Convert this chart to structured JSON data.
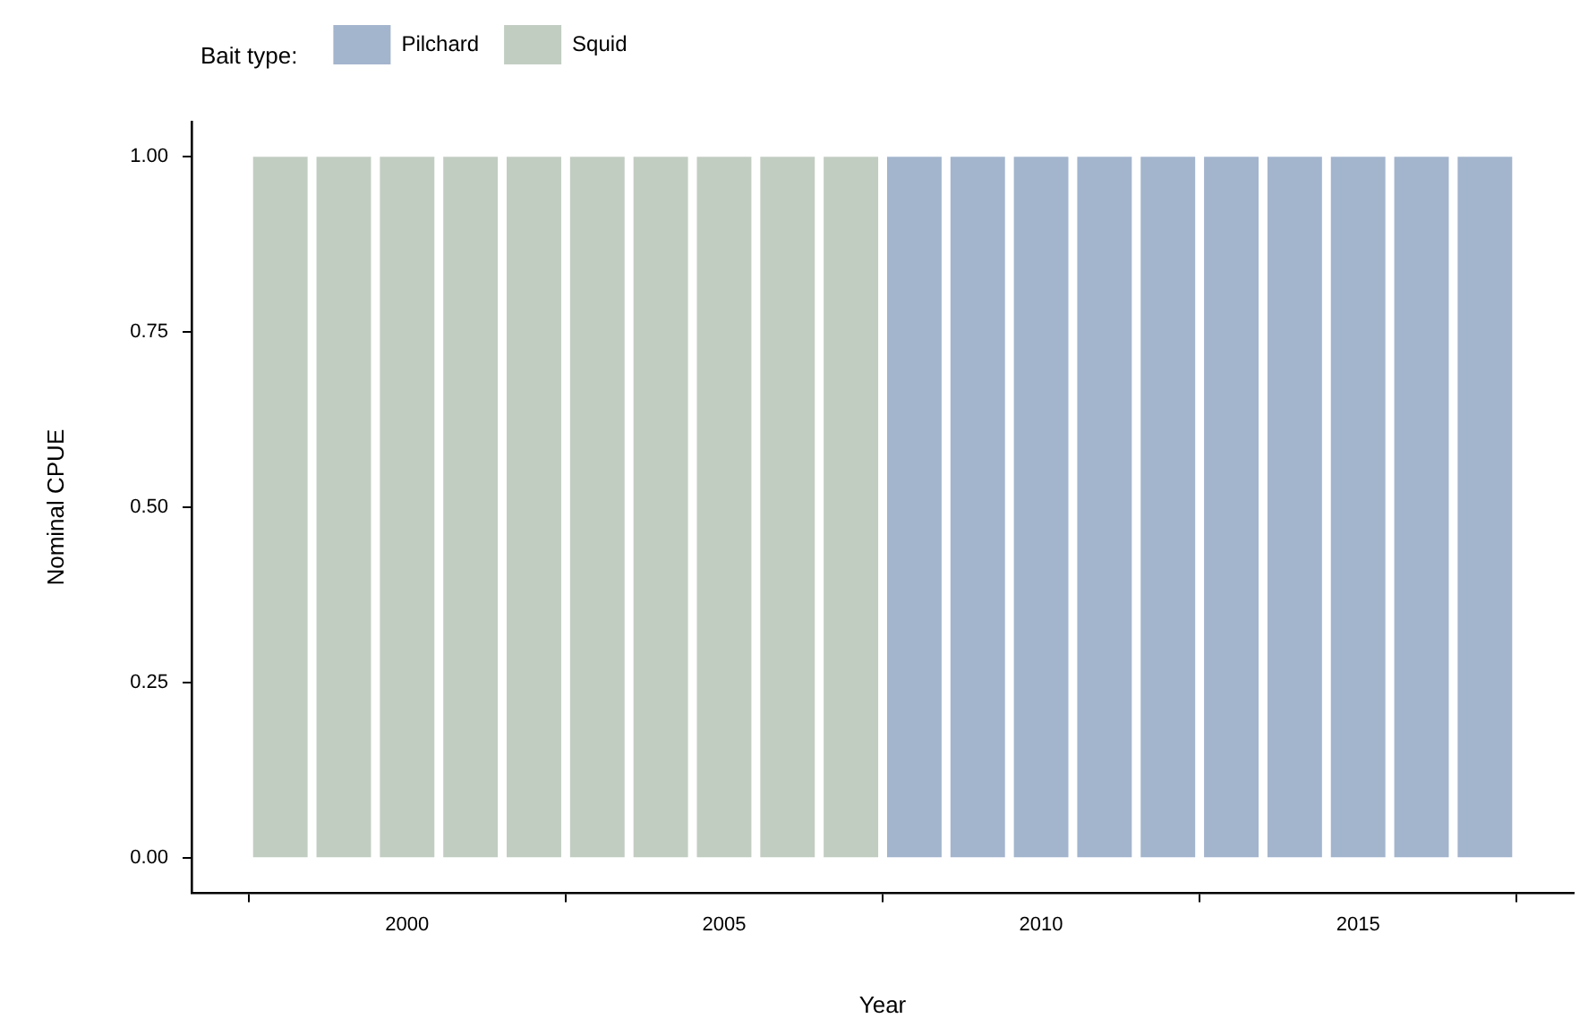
{
  "chart_data": {
    "type": "bar",
    "xlabel": "Year",
    "ylabel": "Nominal CPUE",
    "legend_title": "Bait type:",
    "legend": "top left",
    "grid": false,
    "xlim": [
      1996.6,
      2018.4
    ],
    "xticks": [
      2000,
      2005,
      2010,
      2015
    ],
    "ylim": [
      -0.05,
      1.05
    ],
    "yticks": [
      {
        "value": 0,
        "label": "0.00"
      },
      {
        "value": 0.25,
        "label": "0.25"
      },
      {
        "value": 0.5,
        "label": "0.50"
      },
      {
        "value": 0.75,
        "label": "0.75"
      },
      {
        "value": 1,
        "label": "1.00"
      }
    ],
    "series": [
      {
        "name": "Pilchard",
        "color": "#a3b4cd",
        "x": [
          2008,
          2009,
          2010,
          2011,
          2012,
          2013,
          2014,
          2015,
          2016,
          2017
        ],
        "values": [
          1,
          1,
          1,
          1,
          1,
          1,
          1,
          1,
          1,
          1
        ]
      },
      {
        "name": "Squid",
        "color": "#c2cdc2",
        "x": [
          1998,
          1999,
          2000,
          2001,
          2002,
          2003,
          2004,
          2005,
          2006,
          2007
        ],
        "values": [
          1,
          1,
          1,
          1,
          1,
          1,
          1,
          1,
          1,
          1
        ]
      }
    ]
  }
}
